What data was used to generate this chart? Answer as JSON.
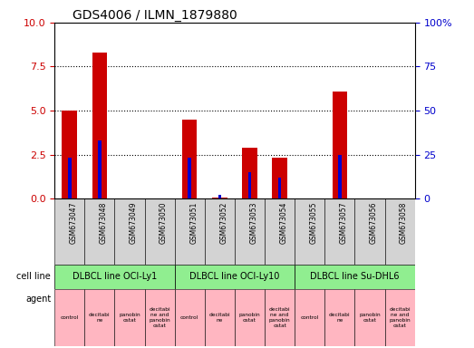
{
  "title": "GDS4006 / ILMN_1879880",
  "samples": [
    "GSM673047",
    "GSM673048",
    "GSM673049",
    "GSM673050",
    "GSM673051",
    "GSM673052",
    "GSM673053",
    "GSM673054",
    "GSM673055",
    "GSM673057",
    "GSM673056",
    "GSM673058"
  ],
  "count_values": [
    5.0,
    8.3,
    0.0,
    0.0,
    4.5,
    0.05,
    2.9,
    2.3,
    0.0,
    6.1,
    0.0,
    0.0
  ],
  "percentile_values": [
    23,
    33,
    0,
    0,
    23,
    2,
    15,
    12,
    0,
    25,
    0,
    0
  ],
  "ylim_left": [
    0,
    10
  ],
  "ylim_right": [
    0,
    100
  ],
  "yticks_left": [
    0,
    2.5,
    5,
    7.5,
    10
  ],
  "yticks_right": [
    0,
    25,
    50,
    75,
    100
  ],
  "cell_line_groups": [
    {
      "label": "DLBCL line OCI-Ly1",
      "start": 0,
      "end": 4,
      "color": "#90EE90"
    },
    {
      "label": "DLBCL line OCI-Ly10",
      "start": 4,
      "end": 8,
      "color": "#90EE90"
    },
    {
      "label": "DLBCL line Su-DHL6",
      "start": 8,
      "end": 12,
      "color": "#90EE90"
    }
  ],
  "agent_labels": [
    "control",
    "decitabi\nne",
    "panobin\nostat",
    "decitabi\nne and\npanobin\nostat",
    "control",
    "decitabi\nne",
    "panobin\nostat",
    "decitabi\nne and\npanobin\nostat",
    "control",
    "decitabi\nne",
    "panobin\nostat",
    "decitabi\nne and\npanobin\nostat"
  ],
  "bar_color": "#CC0000",
  "percentile_color": "#0000CC",
  "background_color": "#ffffff",
  "grid_color": "#000000",
  "tick_color_left": "#CC0000",
  "tick_color_right": "#0000CC",
  "title_fontsize": 10,
  "bar_width": 0.5,
  "sample_bg_color": "#D3D3D3",
  "agent_color": "#FFB6C1",
  "cell_line_color": "#90EE90"
}
